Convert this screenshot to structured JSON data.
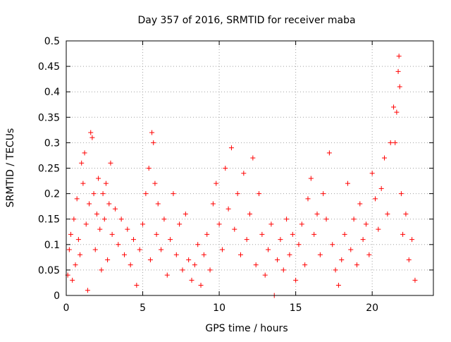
{
  "chart_data": {
    "type": "scatter",
    "title": "Day 357 of 2016, SRMTID for receiver maba",
    "xlabel": "GPS time / hours",
    "ylabel": "SRMTID / TECUs",
    "xlim": [
      0,
      24
    ],
    "ylim": [
      0,
      0.5
    ],
    "xticks": [
      0,
      5,
      10,
      15,
      20
    ],
    "xtick_labels": [
      "0",
      "5",
      "10",
      "15",
      "20"
    ],
    "yticks": [
      0,
      0.05,
      0.1,
      0.15,
      0.2,
      0.25,
      0.3,
      0.35,
      0.4,
      0.45,
      0.5
    ],
    "ytick_labels": [
      "0",
      "0.05",
      "0.1",
      "0.15",
      "0.2",
      "0.25",
      "0.3",
      "0.35",
      "0.4",
      "0.45",
      "0.5"
    ],
    "grid": true,
    "marker": "+",
    "series": [
      {
        "name": "SRMTID",
        "color": "#ff0000",
        "points": [
          [
            0.1,
            0.04
          ],
          [
            0.2,
            0.09
          ],
          [
            0.3,
            0.12
          ],
          [
            0.4,
            0.03
          ],
          [
            0.5,
            0.15
          ],
          [
            0.6,
            0.06
          ],
          [
            0.7,
            0.19
          ],
          [
            0.8,
            0.11
          ],
          [
            0.9,
            0.08
          ],
          [
            1.0,
            0.26
          ],
          [
            1.1,
            0.22
          ],
          [
            1.2,
            0.28
          ],
          [
            1.3,
            0.14
          ],
          [
            1.4,
            0.01
          ],
          [
            1.5,
            0.18
          ],
          [
            1.6,
            0.32
          ],
          [
            1.7,
            0.31
          ],
          [
            1.8,
            0.2
          ],
          [
            1.9,
            0.09
          ],
          [
            2.0,
            0.16
          ],
          [
            2.1,
            0.23
          ],
          [
            2.2,
            0.13
          ],
          [
            2.3,
            0.05
          ],
          [
            2.4,
            0.2
          ],
          [
            2.5,
            0.15
          ],
          [
            2.6,
            0.22
          ],
          [
            2.7,
            0.07
          ],
          [
            2.8,
            0.18
          ],
          [
            2.9,
            0.26
          ],
          [
            3.0,
            0.12
          ],
          [
            3.2,
            0.17
          ],
          [
            3.4,
            0.1
          ],
          [
            3.6,
            0.15
          ],
          [
            3.8,
            0.08
          ],
          [
            4.0,
            0.13
          ],
          [
            4.2,
            0.06
          ],
          [
            4.4,
            0.11
          ],
          [
            4.6,
            0.02
          ],
          [
            4.8,
            0.09
          ],
          [
            5.0,
            0.14
          ],
          [
            5.2,
            0.2
          ],
          [
            5.4,
            0.25
          ],
          [
            5.5,
            0.07
          ],
          [
            5.6,
            0.32
          ],
          [
            5.7,
            0.3
          ],
          [
            5.8,
            0.22
          ],
          [
            5.9,
            0.12
          ],
          [
            6.0,
            0.18
          ],
          [
            6.2,
            0.09
          ],
          [
            6.4,
            0.15
          ],
          [
            6.6,
            0.04
          ],
          [
            6.8,
            0.11
          ],
          [
            7.0,
            0.2
          ],
          [
            7.2,
            0.08
          ],
          [
            7.4,
            0.14
          ],
          [
            7.6,
            0.05
          ],
          [
            7.8,
            0.16
          ],
          [
            8.0,
            0.07
          ],
          [
            8.2,
            0.03
          ],
          [
            8.4,
            0.06
          ],
          [
            8.6,
            0.1
          ],
          [
            8.8,
            0.02
          ],
          [
            9.0,
            0.08
          ],
          [
            9.2,
            0.12
          ],
          [
            9.4,
            0.05
          ],
          [
            9.6,
            0.18
          ],
          [
            9.8,
            0.22
          ],
          [
            10.0,
            0.14
          ],
          [
            10.2,
            0.09
          ],
          [
            10.4,
            0.25
          ],
          [
            10.6,
            0.17
          ],
          [
            10.8,
            0.29
          ],
          [
            11.0,
            0.13
          ],
          [
            11.2,
            0.2
          ],
          [
            11.4,
            0.08
          ],
          [
            11.6,
            0.24
          ],
          [
            11.8,
            0.11
          ],
          [
            12.0,
            0.16
          ],
          [
            12.2,
            0.27
          ],
          [
            12.4,
            0.06
          ],
          [
            12.6,
            0.2
          ],
          [
            12.8,
            0.12
          ],
          [
            13.0,
            0.04
          ],
          [
            13.2,
            0.09
          ],
          [
            13.4,
            0.14
          ],
          [
            13.6,
            0.0
          ],
          [
            13.8,
            0.07
          ],
          [
            14.0,
            0.11
          ],
          [
            14.2,
            0.05
          ],
          [
            14.4,
            0.15
          ],
          [
            14.6,
            0.08
          ],
          [
            14.8,
            0.12
          ],
          [
            15.0,
            0.03
          ],
          [
            15.2,
            0.1
          ],
          [
            15.4,
            0.14
          ],
          [
            15.6,
            0.06
          ],
          [
            15.8,
            0.19
          ],
          [
            16.0,
            0.23
          ],
          [
            16.2,
            0.12
          ],
          [
            16.4,
            0.16
          ],
          [
            16.6,
            0.08
          ],
          [
            16.8,
            0.2
          ],
          [
            17.0,
            0.15
          ],
          [
            17.2,
            0.28
          ],
          [
            17.4,
            0.1
          ],
          [
            17.6,
            0.05
          ],
          [
            17.8,
            0.02
          ],
          [
            18.0,
            0.07
          ],
          [
            18.2,
            0.12
          ],
          [
            18.4,
            0.22
          ],
          [
            18.6,
            0.09
          ],
          [
            18.8,
            0.15
          ],
          [
            19.0,
            0.06
          ],
          [
            19.2,
            0.18
          ],
          [
            19.4,
            0.11
          ],
          [
            19.6,
            0.14
          ],
          [
            19.8,
            0.08
          ],
          [
            20.0,
            0.24
          ],
          [
            20.2,
            0.19
          ],
          [
            20.4,
            0.13
          ],
          [
            20.6,
            0.21
          ],
          [
            20.8,
            0.27
          ],
          [
            21.0,
            0.16
          ],
          [
            21.2,
            0.3
          ],
          [
            21.4,
            0.37
          ],
          [
            21.5,
            0.3
          ],
          [
            21.6,
            0.36
          ],
          [
            21.7,
            0.44
          ],
          [
            21.75,
            0.47
          ],
          [
            21.8,
            0.41
          ],
          [
            21.9,
            0.2
          ],
          [
            22.0,
            0.12
          ],
          [
            22.2,
            0.16
          ],
          [
            22.4,
            0.07
          ],
          [
            22.6,
            0.11
          ],
          [
            22.8,
            0.03
          ]
        ]
      }
    ]
  }
}
